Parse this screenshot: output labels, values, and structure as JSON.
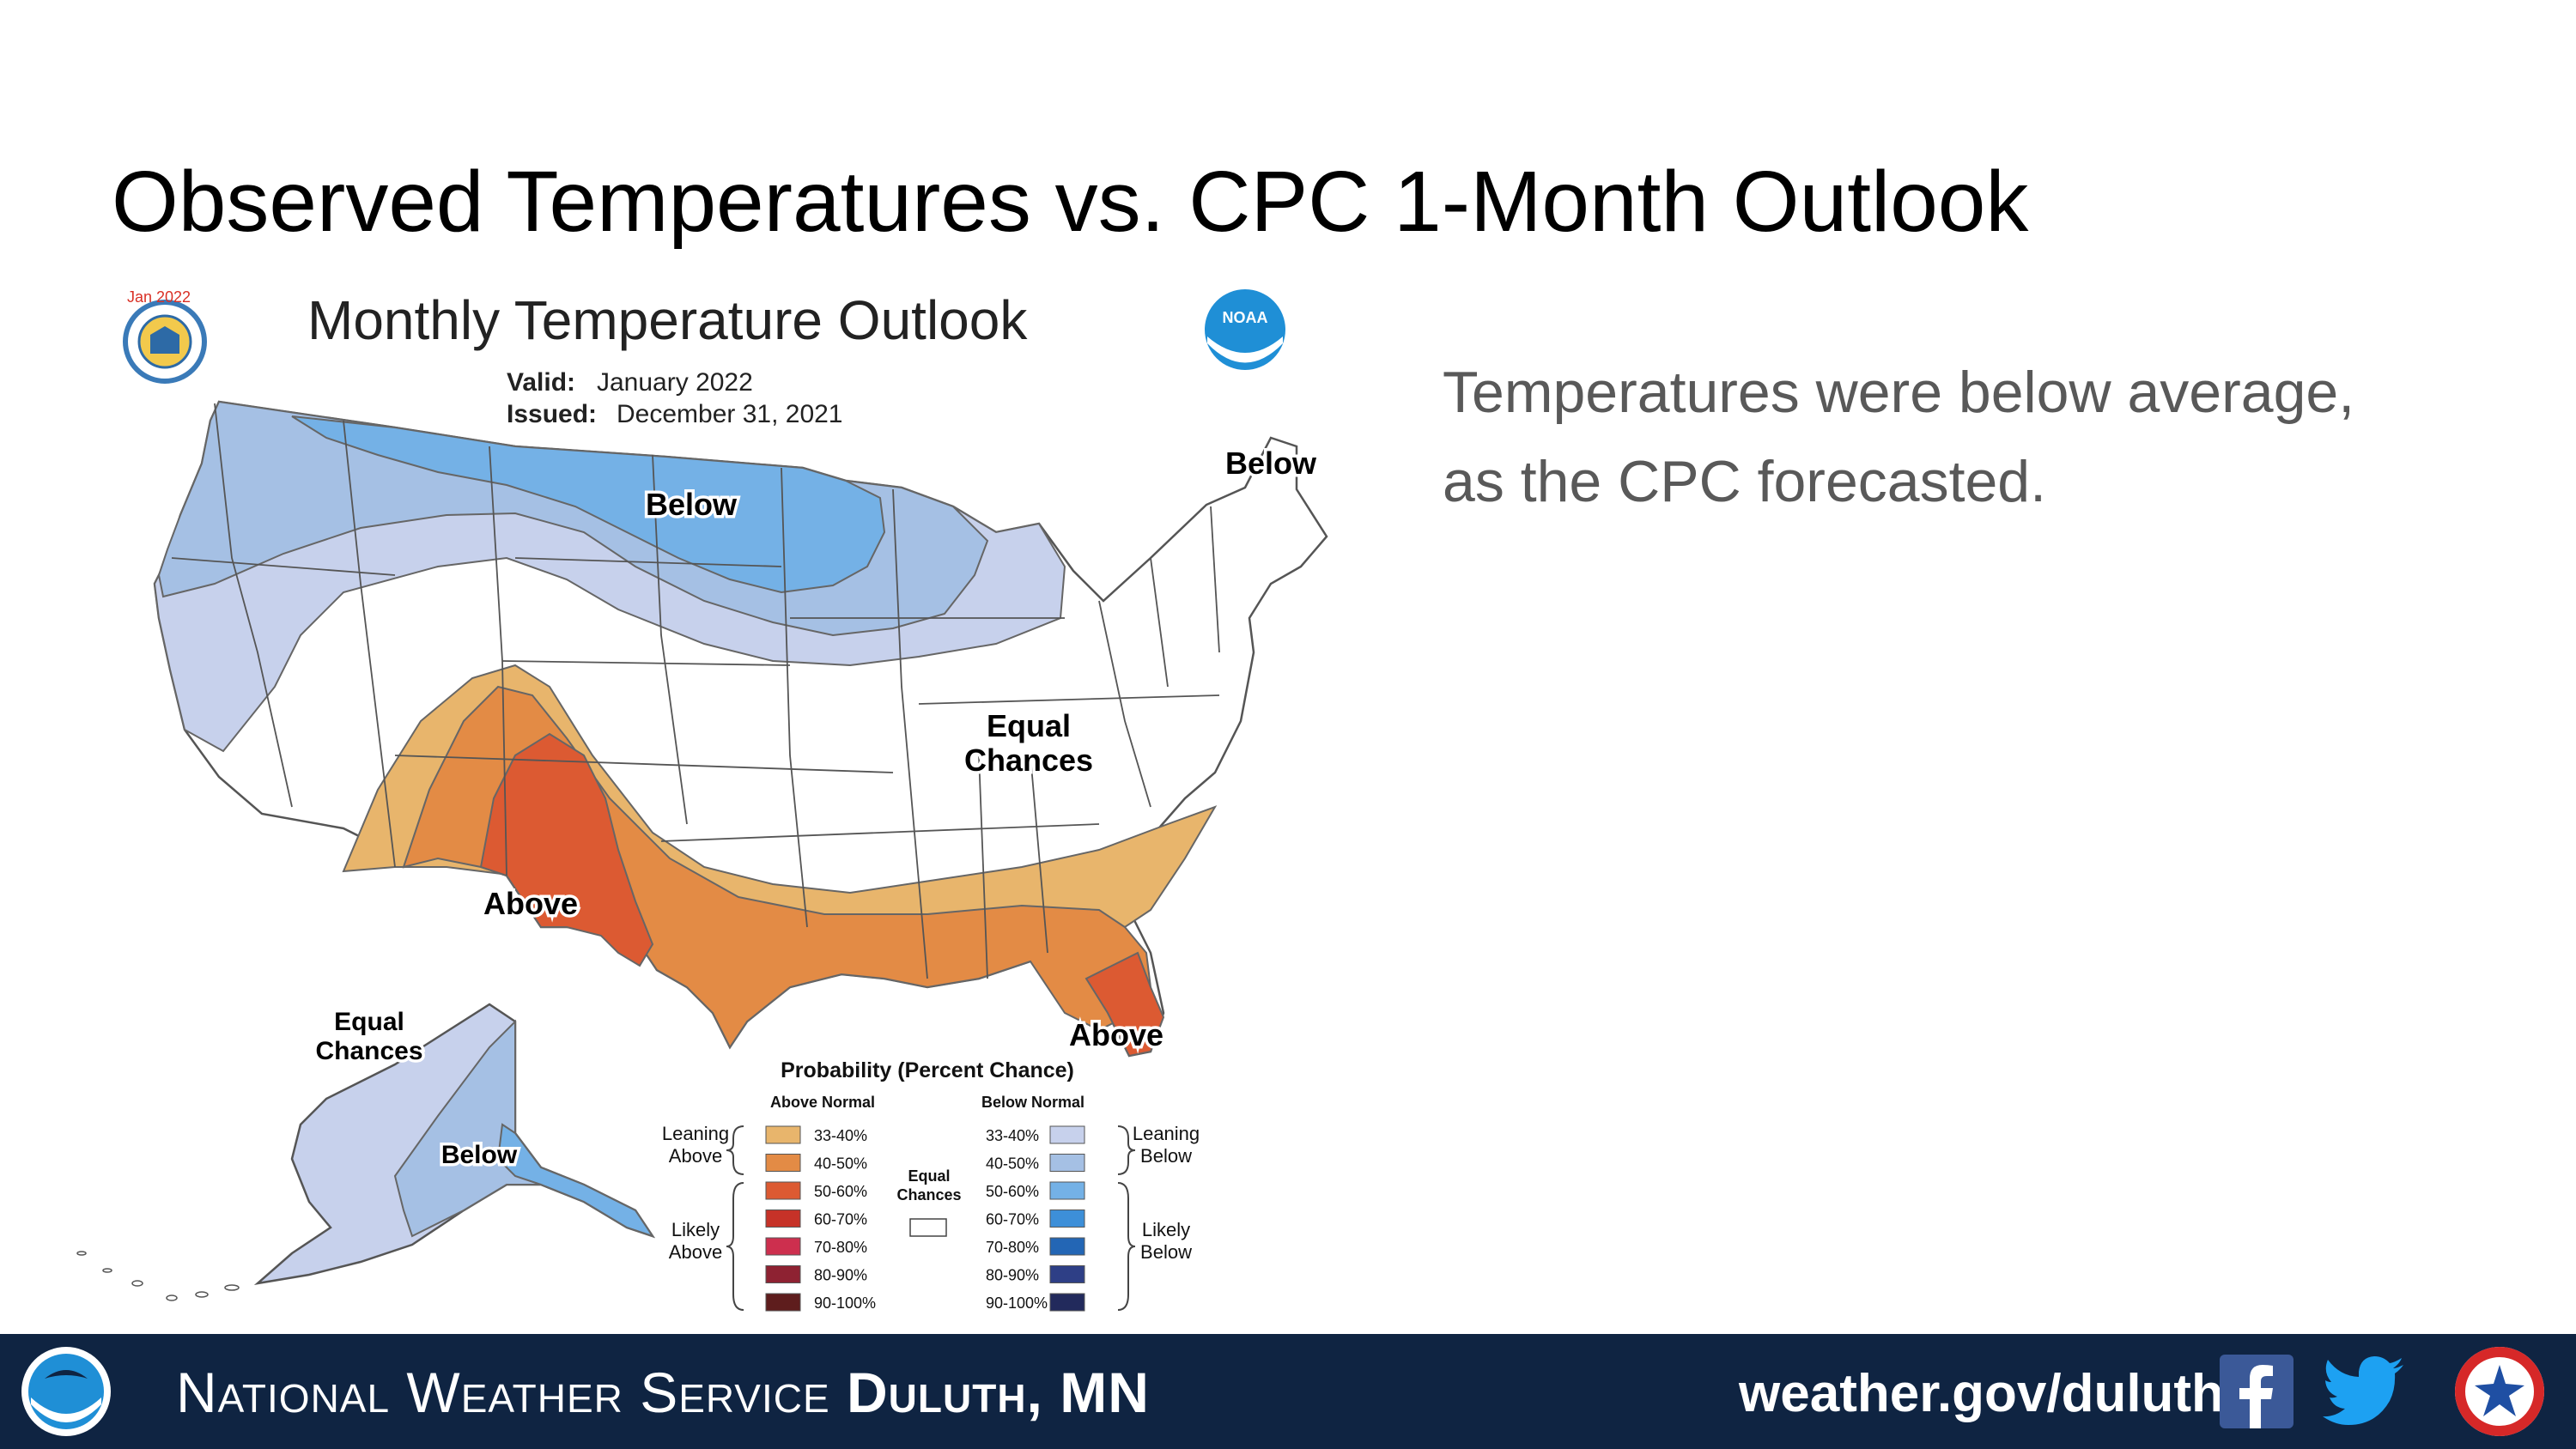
{
  "slide": {
    "title": "Observed Temperatures vs. CPC 1-Month Outlook",
    "caption_line1": "Temperatures were below average,",
    "caption_line2": "as the CPC forecasted."
  },
  "map": {
    "title": "Monthly Temperature Outlook",
    "badge": "Jan 2022",
    "valid_label": "Valid:",
    "valid_value": "January 2022",
    "issued_label": "Issued:",
    "issued_value": "December 31, 2021",
    "noaa_logo_text": "NOAA",
    "region_labels": {
      "below_north": "Below",
      "below_maine": "Below",
      "equal_line1": "Equal",
      "equal_line2": "Chances",
      "above_southwest": "Above",
      "above_florida": "Above",
      "alaska_equal_line1": "Equal",
      "alaska_equal_line2": "Chances",
      "alaska_below": "Below"
    }
  },
  "legend": {
    "title": "Probability (Percent Chance)",
    "above_header": "Above Normal",
    "below_header": "Below Normal",
    "leaning_above_1": "Leaning",
    "leaning_above_2": "Above",
    "likely_above_1": "Likely",
    "likely_above_2": "Above",
    "leaning_below_1": "Leaning",
    "leaning_below_2": "Below",
    "likely_below_1": "Likely",
    "likely_below_2": "Below",
    "equal_1": "Equal",
    "equal_2": "Chances",
    "above_bins": [
      {
        "label": "33-40%",
        "color": "#e8b56c"
      },
      {
        "label": "40-50%",
        "color": "#e38b45"
      },
      {
        "label": "50-60%",
        "color": "#dc5a32"
      },
      {
        "label": "60-70%",
        "color": "#c63228"
      },
      {
        "label": "70-80%",
        "color": "#cd2f4e"
      },
      {
        "label": "80-90%",
        "color": "#8e2232"
      },
      {
        "label": "90-100%",
        "color": "#5e1d1d"
      }
    ],
    "below_bins": [
      {
        "label": "33-40%",
        "color": "#c7d1ec"
      },
      {
        "label": "40-50%",
        "color": "#a5c0e4"
      },
      {
        "label": "50-60%",
        "color": "#74b1e6"
      },
      {
        "label": "60-70%",
        "color": "#3d8fd8"
      },
      {
        "label": "70-80%",
        "color": "#2366b5"
      },
      {
        "label": "80-90%",
        "color": "#2e3f86"
      },
      {
        "label": "90-100%",
        "color": "#222a5c"
      }
    ]
  },
  "footer": {
    "org_prefix": "National Weather Service",
    "org_office": "Duluth, MN",
    "url": "weather.gov/duluth",
    "facebook_icon": "facebook-icon",
    "twitter_icon": "twitter-icon"
  }
}
